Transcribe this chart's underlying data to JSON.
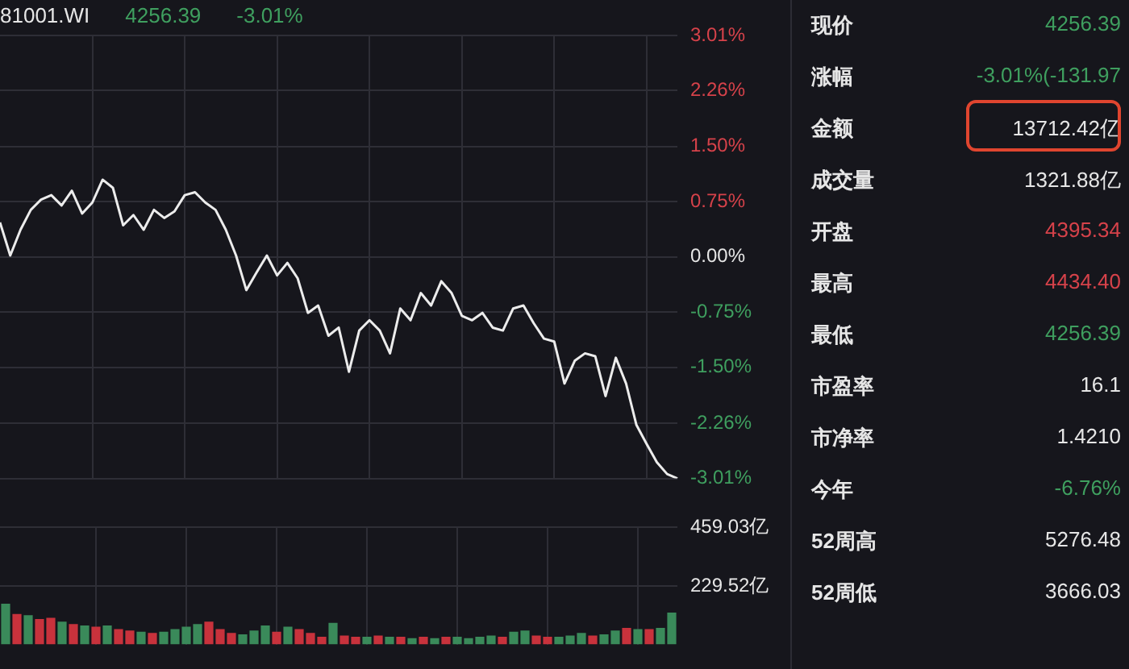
{
  "chart_data": [
    {
      "type": "line",
      "title": "81001.WI",
      "annotations": [
        "4256.39",
        "-3.01%"
      ],
      "categories": [
        null,
        null,
        null,
        null,
        null,
        null,
        null,
        null,
        null,
        null,
        null,
        null,
        null,
        null,
        null,
        null,
        null,
        null,
        null,
        null,
        null,
        null,
        null,
        null,
        null,
        null,
        null,
        null,
        null,
        null,
        null,
        null,
        null,
        null,
        null,
        null,
        null,
        null,
        null,
        null,
        null,
        null,
        null,
        null,
        null,
        null,
        null,
        null,
        null,
        null,
        null,
        null,
        null,
        null,
        null,
        null,
        null,
        null,
        null,
        null,
        null,
        null,
        null,
        null,
        null,
        null,
        null
      ],
      "series": [
        {
          "color": "#ececec",
          "values": [
            0.47,
            0.02,
            0.37,
            0.64,
            0.78,
            0.84,
            0.7,
            0.9,
            0.59,
            0.74,
            1.05,
            0.94,
            0.43,
            0.57,
            0.37,
            0.64,
            0.53,
            0.62,
            0.84,
            0.88,
            0.74,
            0.64,
            0.37,
            0.02,
            -0.45,
            -0.21,
            0.02,
            -0.25,
            -0.08,
            -0.29,
            -0.76,
            -0.66,
            -1.07,
            -0.96,
            -1.56,
            -1.0,
            -0.86,
            -1.0,
            -1.31,
            -0.7,
            -0.86,
            -0.49,
            -0.66,
            -0.33,
            -0.49,
            -0.8,
            -0.86,
            -0.76,
            -0.96,
            -1.0,
            -0.7,
            -0.66,
            -0.9,
            -1.11,
            -1.15,
            -1.72,
            -1.41,
            -1.31,
            -1.35,
            -1.89,
            -1.37,
            -1.72,
            -2.28,
            -2.54,
            -2.79,
            -2.95,
            -3.01
          ]
        }
      ],
      "ylim": [
        -3.01,
        3.01
      ],
      "yticks": [
        {
          "value": 3.01,
          "label": "3.01%"
        },
        {
          "value": 2.26,
          "label": "2.26%"
        },
        {
          "value": 1.5,
          "label": "1.50%"
        },
        {
          "value": 0.75,
          "label": "0.75%"
        },
        {
          "value": 0,
          "label": "0.00%"
        },
        {
          "value": -0.75,
          "label": "-0.75%"
        },
        {
          "value": -1.5,
          "label": "-1.50%"
        },
        {
          "value": -2.26,
          "label": "-2.26%"
        },
        {
          "value": -3.01,
          "label": "-3.01%"
        }
      ],
      "grid": true,
      "tick_labels": "y"
    },
    {
      "type": "bar",
      "categories": [
        null,
        null,
        null,
        null,
        null,
        null,
        null,
        null,
        null,
        null,
        null,
        null,
        null,
        null,
        null,
        null,
        null,
        null,
        null,
        null,
        null,
        null,
        null,
        null,
        null,
        null,
        null,
        null,
        null,
        null,
        null,
        null,
        null,
        null,
        null,
        null,
        null,
        null,
        null,
        null,
        null,
        null,
        null,
        null,
        null,
        null,
        null,
        null,
        null,
        null,
        null,
        null,
        null,
        null,
        null,
        null,
        null,
        null,
        null,
        null
      ],
      "values": [
        160,
        120,
        115,
        100,
        105,
        90,
        80,
        75,
        70,
        75,
        60,
        55,
        50,
        45,
        50,
        60,
        70,
        80,
        90,
        60,
        45,
        40,
        55,
        75,
        50,
        70,
        60,
        45,
        30,
        85,
        35,
        30,
        30,
        35,
        30,
        30,
        25,
        30,
        25,
        30,
        30,
        25,
        30,
        35,
        30,
        50,
        55,
        35,
        30,
        30,
        35,
        45,
        35,
        40,
        55,
        65,
        60,
        60,
        65,
        125
      ],
      "colors": [
        "#3a8a5a",
        "#c8323c",
        "#3a8a5a",
        "#c8323c",
        "#c8323c",
        "#3a8a5a",
        "#c8323c",
        "#3a8a5a",
        "#c8323c",
        "#3a8a5a",
        "#c8323c",
        "#c8323c",
        "#3a8a5a",
        "#c8323c",
        "#3a8a5a",
        "#3a8a5a",
        "#3a8a5a",
        "#3a8a5a",
        "#c8323c",
        "#c8323c",
        "#c8323c",
        "#3a8a5a",
        "#3a8a5a",
        "#3a8a5a",
        "#c8323c",
        "#3a8a5a",
        "#c8323c",
        "#c8323c",
        "#c8323c",
        "#3a8a5a",
        "#c8323c",
        "#c8323c",
        "#3a8a5a",
        "#c8323c",
        "#3a8a5a",
        "#c8323c",
        "#3a8a5a",
        "#c8323c",
        "#3a8a5a",
        "#c8323c",
        "#3a8a5a",
        "#3a8a5a",
        "#3a8a5a",
        "#3a8a5a",
        "#c8323c",
        "#3a8a5a",
        "#3a8a5a",
        "#c8323c",
        "#c8323c",
        "#3a8a5a",
        "#3a8a5a",
        "#3a8a5a",
        "#c8323c",
        "#3a8a5a",
        "#3a8a5a",
        "#c8323c",
        "#3a8a5a",
        "#c8323c",
        "#3a8a5a",
        "#3a8a5a"
      ],
      "ylim": [
        0,
        459.03
      ],
      "yticks": [
        {
          "value": 229.52,
          "label": "229.52亿"
        },
        {
          "value": 459.03,
          "label": "459.03亿"
        }
      ],
      "grid": true,
      "tick_labels": "y"
    },
    {
      "type": "other",
      "annotations": [
        "现价",
        "4256.39",
        "涨幅",
        "-3.01%(-131.97",
        "金额",
        "13712.42亿",
        "成交量",
        "1321.88亿",
        "开盘",
        "4395.34",
        "最高",
        "4434.40",
        "最低",
        "4256.39",
        "市盈率",
        "16.1",
        "市净率",
        "1.4210",
        "今年",
        "-6.76%",
        "52周高",
        "5276.48",
        "52周低",
        "3666.03"
      ]
    }
  ]
}
